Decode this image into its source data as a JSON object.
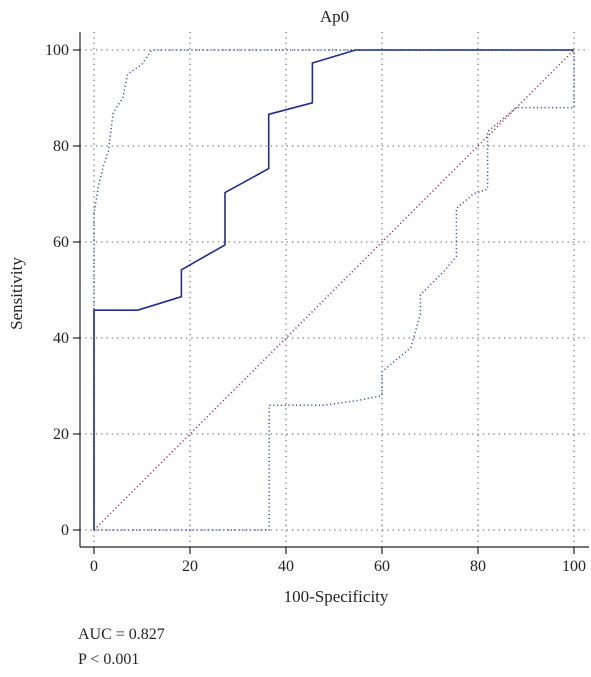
{
  "chart_data": {
    "type": "line",
    "title": "Ap0",
    "xlabel": "100-Specificity",
    "ylabel": "Sensitivity",
    "xlim": [
      0,
      100
    ],
    "ylim": [
      0,
      100
    ],
    "x_ticks": [
      "0",
      "20",
      "40",
      "60",
      "80",
      "100"
    ],
    "y_ticks": [
      "0",
      "20",
      "40",
      "60",
      "80",
      "100"
    ],
    "grid": true,
    "colors": {
      "roc": "#1f2d8f",
      "ci": "#3b4fc4",
      "reference": "#b03050",
      "grid": "#555555"
    },
    "series": [
      {
        "role": "roc",
        "points": [
          [
            0,
            0
          ],
          [
            0,
            45.8
          ],
          [
            9.1,
            45.8
          ],
          [
            18.2,
            48.6
          ],
          [
            18.2,
            54.2
          ],
          [
            27.3,
            59.4
          ],
          [
            27.3,
            70.3
          ],
          [
            36.4,
            75.3
          ],
          [
            36.4,
            86.6
          ],
          [
            45.5,
            89.0
          ],
          [
            45.5,
            97.3
          ],
          [
            54.5,
            100
          ],
          [
            100,
            100
          ]
        ]
      },
      {
        "role": "ci-upper",
        "points": [
          [
            0,
            0
          ],
          [
            0,
            66
          ],
          [
            1,
            72
          ],
          [
            2,
            76
          ],
          [
            3,
            79
          ],
          [
            4,
            87
          ],
          [
            6,
            90
          ],
          [
            7,
            95
          ],
          [
            10,
            97
          ],
          [
            12,
            100
          ],
          [
            100,
            100
          ]
        ]
      },
      {
        "role": "ci-lower",
        "points": [
          [
            0,
            0
          ],
          [
            36.5,
            0
          ],
          [
            36.5,
            26
          ],
          [
            48,
            26
          ],
          [
            55,
            27
          ],
          [
            60,
            28
          ],
          [
            60,
            33
          ],
          [
            66,
            38
          ],
          [
            68,
            45
          ],
          [
            68,
            49
          ],
          [
            73,
            54
          ],
          [
            75.5,
            57
          ],
          [
            75.5,
            67
          ],
          [
            79,
            70
          ],
          [
            82,
            71
          ],
          [
            82,
            83
          ],
          [
            88,
            88
          ],
          [
            100,
            88
          ],
          [
            100,
            100
          ]
        ]
      },
      {
        "role": "reference",
        "points": [
          [
            0,
            0
          ],
          [
            100,
            100
          ]
        ]
      }
    ]
  },
  "annotations": {
    "auc": "AUC = 0.827",
    "p": "P < 0.001"
  }
}
